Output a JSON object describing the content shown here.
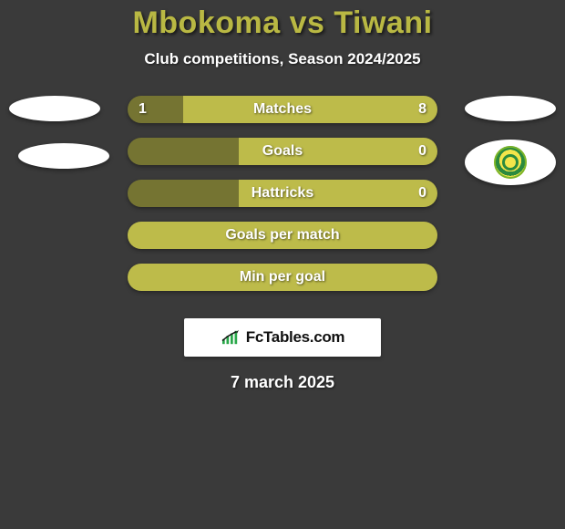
{
  "background_color": "#3a3a3a",
  "title": {
    "text": "Mbokoma vs Tiwani",
    "color": "#b9b843",
    "fontsize": 34
  },
  "subtitle": {
    "text": "Club competitions, Season 2024/2025",
    "color": "#ffffff",
    "fontsize": 17
  },
  "colors": {
    "left": "#757432",
    "right": "#bdbb4a",
    "label": "#ffffff"
  },
  "bar": {
    "height": 30,
    "radius": 15,
    "gap": 16,
    "label_fontsize": 16
  },
  "stats": [
    {
      "label": "Matches",
      "left_text": "1",
      "right_text": "8",
      "left_pct": 18,
      "right_pct": 82
    },
    {
      "label": "Goals",
      "left_text": "",
      "right_text": "0",
      "left_pct": 36,
      "right_pct": 64
    },
    {
      "label": "Hattricks",
      "left_text": "",
      "right_text": "0",
      "left_pct": 36,
      "right_pct": 64
    },
    {
      "label": "Goals per match",
      "left_text": "",
      "right_text": "",
      "left_pct": 0,
      "right_pct": 100
    },
    {
      "label": "Min per goal",
      "left_text": "",
      "right_text": "",
      "left_pct": 0,
      "right_pct": 100
    }
  ],
  "logo": {
    "text": "FcTables.com",
    "bar_color": "#2aa84a",
    "line_color": "#111111"
  },
  "date": {
    "text": "7 march 2025",
    "color": "#ffffff",
    "fontsize": 18
  }
}
